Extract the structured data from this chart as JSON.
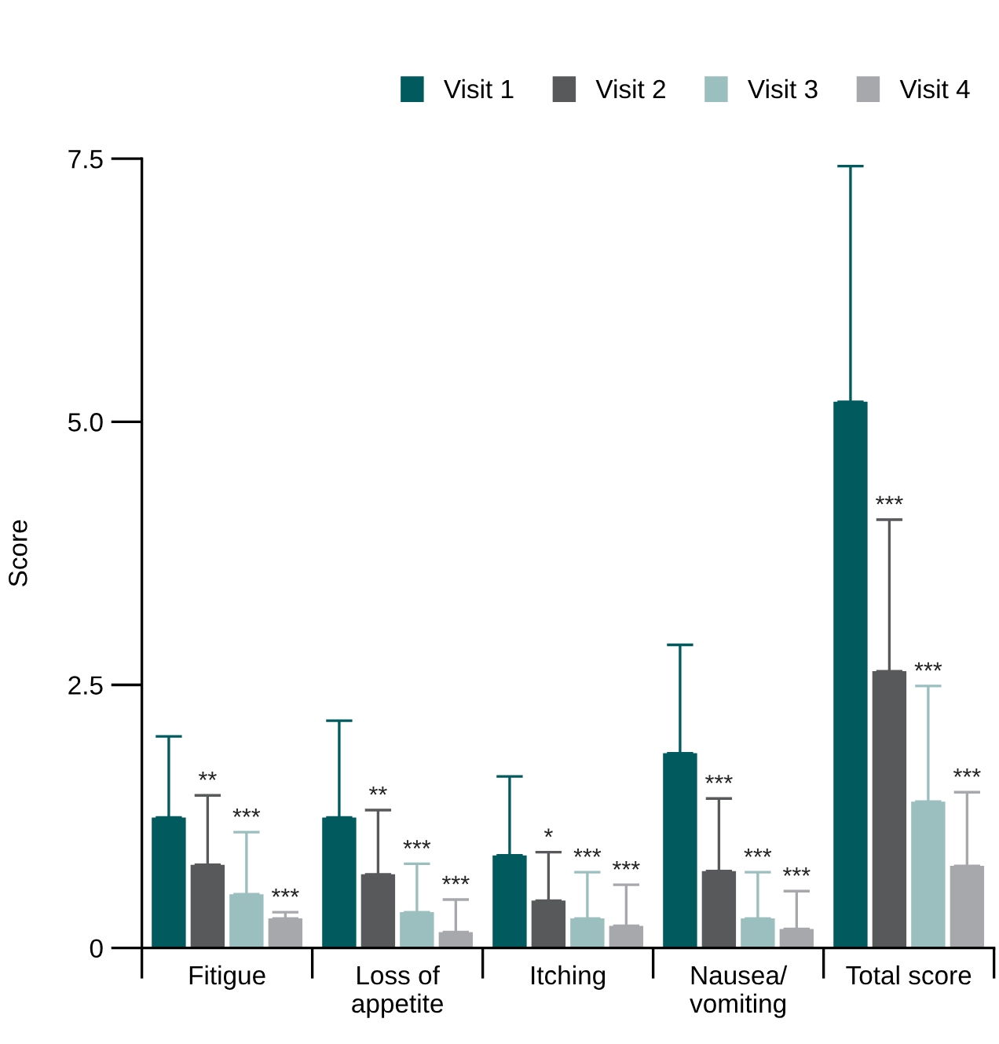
{
  "chart_data": {
    "type": "bar",
    "ylabel": "Score",
    "categories": [
      "Fitigue",
      "Loss of\nappetite",
      "Itching",
      "Nausea/\nvomiting",
      "Total score"
    ],
    "series": [
      {
        "name": "Visit 1",
        "color": "#005a5e",
        "values": [
          1.24,
          1.24,
          0.88,
          1.85,
          5.19
        ],
        "errors": [
          [
            1.24,
            2.01
          ],
          [
            1.24,
            2.16
          ],
          [
            0.88,
            1.63
          ],
          [
            1.85,
            2.88
          ],
          [
            5.19,
            7.43
          ]
        ]
      },
      {
        "name": "Visit 2",
        "color": "#58595b",
        "values": [
          0.79,
          0.7,
          0.45,
          0.73,
          2.63
        ],
        "errors": [
          [
            0.79,
            1.45
          ],
          [
            0.7,
            1.31
          ],
          [
            0.45,
            0.91
          ],
          [
            0.73,
            1.42
          ],
          [
            2.63,
            4.07
          ]
        ]
      },
      {
        "name": "Visit 3",
        "color": "#9bbfbf",
        "values": [
          0.51,
          0.34,
          0.28,
          0.28,
          1.39
        ],
        "errors": [
          [
            0.51,
            1.1
          ],
          [
            0.34,
            0.8
          ],
          [
            0.28,
            0.72
          ],
          [
            0.28,
            0.72
          ],
          [
            1.39,
            2.49
          ]
        ]
      },
      {
        "name": "Visit 4",
        "color": "#a7a8ab",
        "values": [
          0.28,
          0.15,
          0.21,
          0.18,
          0.78
        ],
        "errors": [
          [
            0.28,
            0.34
          ],
          [
            0.15,
            0.46
          ],
          [
            0.21,
            0.6
          ],
          [
            0.18,
            0.54
          ],
          [
            0.78,
            1.48
          ]
        ]
      }
    ],
    "annotations": [
      "**",
      "***",
      "***",
      "**",
      "***",
      "***",
      "*",
      "***",
      "***",
      "***",
      "***",
      "***",
      "***",
      "***",
      "***"
    ],
    "ylim": [
      0,
      7.5
    ],
    "yticks": [
      0,
      2.5,
      {
        "value": 5.0,
        "label": "5.0"
      },
      7.5
    ],
    "grid": false,
    "legend": "top right"
  }
}
